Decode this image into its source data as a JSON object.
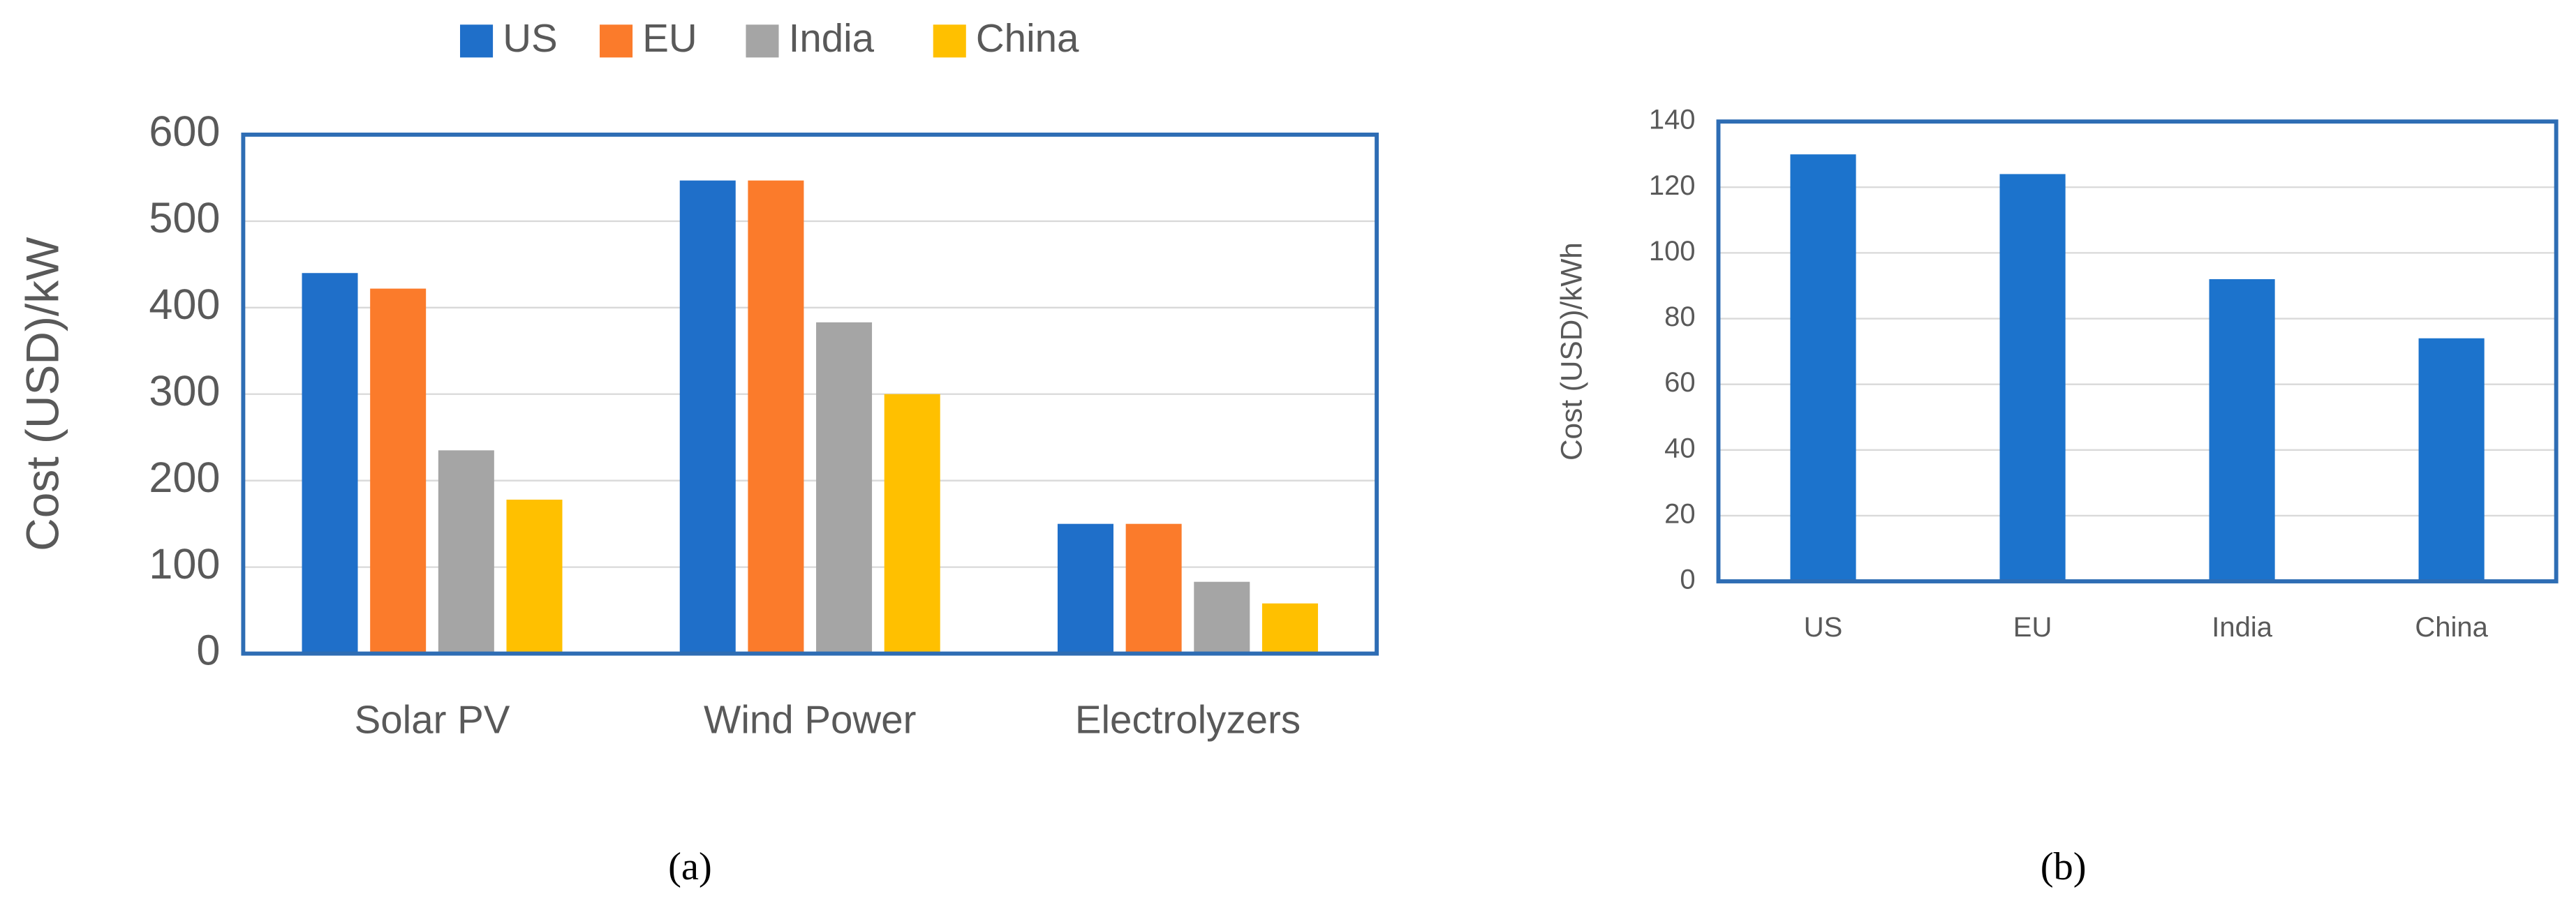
{
  "chart_data": [
    {
      "type": "bar",
      "y_label": "Cost (USD)/kW",
      "caption": "(a)",
      "categories": [
        "Solar PV",
        "Wind Power",
        "Electrolyzers"
      ],
      "series": [
        {
          "name": "US",
          "color": "#1f6fc9",
          "values": [
            440,
            547,
            150
          ]
        },
        {
          "name": "EU",
          "color": "#fb7b2b",
          "values": [
            422,
            547,
            150
          ]
        },
        {
          "name": "India",
          "color": "#a5a5a5",
          "values": [
            235,
            383,
            83
          ]
        },
        {
          "name": "China",
          "color": "#ffc000",
          "values": [
            178,
            300,
            58
          ]
        }
      ],
      "ylim": [
        0,
        600
      ],
      "yticks": [
        0,
        100,
        200,
        300,
        400,
        500,
        600
      ],
      "grid": true,
      "legend": "top"
    },
    {
      "type": "bar",
      "y_label": "Cost (USD)/kWh",
      "caption": "(b)",
      "categories": [
        "US",
        "EU",
        "India",
        "China"
      ],
      "values": [
        130,
        124,
        92,
        74
      ],
      "color": "#1c73cc",
      "ylim": [
        0,
        140
      ],
      "yticks": [
        0,
        20,
        40,
        60,
        80,
        100,
        120,
        140
      ],
      "grid": true
    }
  ]
}
